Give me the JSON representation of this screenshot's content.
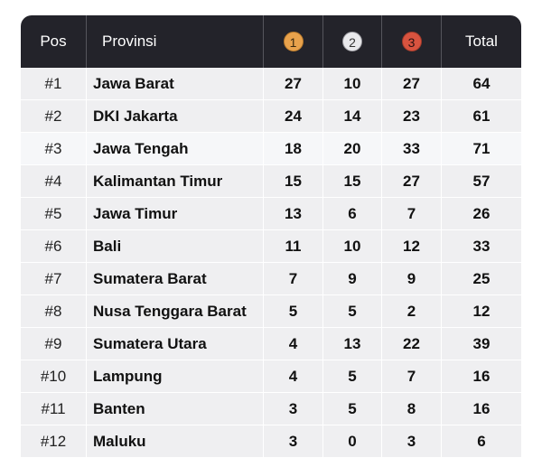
{
  "header": {
    "pos": "Pos",
    "province": "Provinsi",
    "gold": "1",
    "silver": "2",
    "bronze": "3",
    "total": "Total"
  },
  "rows": [
    {
      "pos": "#1",
      "province": "Jawa Barat",
      "gold": "27",
      "silver": "10",
      "bronze": "27",
      "total": "64"
    },
    {
      "pos": "#2",
      "province": "DKI Jakarta",
      "gold": "24",
      "silver": "14",
      "bronze": "23",
      "total": "61"
    },
    {
      "pos": "#3",
      "province": "Jawa Tengah",
      "gold": "18",
      "silver": "20",
      "bronze": "33",
      "total": "71"
    },
    {
      "pos": "#4",
      "province": "Kalimantan Timur",
      "gold": "15",
      "silver": "15",
      "bronze": "27",
      "total": "57"
    },
    {
      "pos": "#5",
      "province": "Jawa Timur",
      "gold": "13",
      "silver": "6",
      "bronze": "7",
      "total": "26"
    },
    {
      "pos": "#6",
      "province": "Bali",
      "gold": "11",
      "silver": "10",
      "bronze": "12",
      "total": "33"
    },
    {
      "pos": "#7",
      "province": "Sumatera Barat",
      "gold": "7",
      "silver": "9",
      "bronze": "9",
      "total": "25"
    },
    {
      "pos": "#8",
      "province": "Nusa Tenggara Barat",
      "gold": "5",
      "silver": "5",
      "bronze": "2",
      "total": "12"
    },
    {
      "pos": "#9",
      "province": "Sumatera Utara",
      "gold": "4",
      "silver": "13",
      "bronze": "22",
      "total": "39"
    },
    {
      "pos": "#10",
      "province": "Lampung",
      "gold": "4",
      "silver": "5",
      "bronze": "7",
      "total": "16"
    },
    {
      "pos": "#11",
      "province": "Banten",
      "gold": "3",
      "silver": "5",
      "bronze": "8",
      "total": "16"
    },
    {
      "pos": "#12",
      "province": "Maluku",
      "gold": "3",
      "silver": "0",
      "bronze": "3",
      "total": "6"
    }
  ],
  "colors": {
    "header_bg": "#23232a",
    "row_bg": "#efeff1",
    "highlight_row_bg": "#f6f7f9",
    "gold": "#e8a24c",
    "silver": "#e9e9ec",
    "bronze": "#d8533f"
  }
}
